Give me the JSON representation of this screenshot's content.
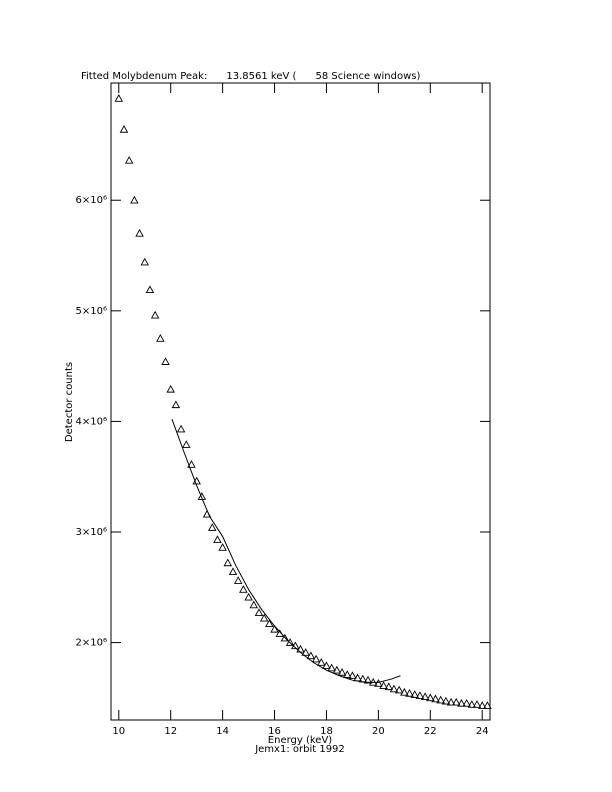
{
  "chart_data": {
    "type": "scatter",
    "title": "Fitted Molybdenum Peak:      13.8561 keV (      58 Science windows)",
    "subtitle": "Jemx1: orbit 1992",
    "x_label": "Energy (keV)",
    "y_label": "Detector counts",
    "xlim": [
      9.7,
      24.3
    ],
    "ylim": [
      1300000,
      7060000
    ],
    "xticks": [
      10,
      12,
      14,
      16,
      18,
      20,
      22,
      24
    ],
    "yticks": [
      {
        "value": 2000000,
        "label": "2×10⁶"
      },
      {
        "value": 3000000,
        "label": "3×10⁶"
      },
      {
        "value": 4000000,
        "label": "4×10⁶"
      },
      {
        "value": 5000000,
        "label": "5×10⁶"
      },
      {
        "value": 6000000,
        "label": "6×10⁶"
      }
    ],
    "series": [
      {
        "type": "scatter",
        "marker": "triangle",
        "color": "#000000",
        "x": [
          10.0,
          10.2,
          10.4,
          10.6,
          10.8,
          11.0,
          11.2,
          11.4,
          11.6,
          11.8,
          12.0,
          12.2,
          12.4,
          12.6,
          12.8,
          13.0,
          13.2,
          13.4,
          13.6,
          13.8,
          14.0,
          14.2,
          14.4,
          14.6,
          14.8,
          15.0,
          15.2,
          15.4,
          15.6,
          15.8,
          16.0,
          16.2,
          16.4,
          16.6,
          16.8,
          17.0,
          17.2,
          17.4,
          17.6,
          17.8,
          18.0,
          18.2,
          18.4,
          18.6,
          18.8,
          19.0,
          19.2,
          19.4,
          19.6,
          19.8,
          20.0,
          20.2,
          20.4,
          20.6,
          20.8,
          21.0,
          21.2,
          21.4,
          21.6,
          21.8,
          22.0,
          22.2,
          22.4,
          22.6,
          22.8,
          23.0,
          23.2,
          23.4,
          23.6,
          23.8,
          24.0,
          24.2
        ],
        "values": [
          6920000,
          6640000,
          6360000,
          6000000,
          5700000,
          5440000,
          5190000,
          4960000,
          4750000,
          4540000,
          4290000,
          4150000,
          3930000,
          3790000,
          3610000,
          3460000,
          3320000,
          3160000,
          3040000,
          2930000,
          2860000,
          2720000,
          2640000,
          2560000,
          2480000,
          2410000,
          2340000,
          2270000,
          2220000,
          2170000,
          2120000,
          2080000,
          2040000,
          2000000,
          1970000,
          1940000,
          1910000,
          1880000,
          1850000,
          1820000,
          1790000,
          1770000,
          1750000,
          1730000,
          1710000,
          1700000,
          1680000,
          1670000,
          1660000,
          1640000,
          1630000,
          1610000,
          1600000,
          1580000,
          1570000,
          1550000,
          1540000,
          1530000,
          1520000,
          1510000,
          1500000,
          1490000,
          1480000,
          1470000,
          1460000,
          1460000,
          1450000,
          1450000,
          1440000,
          1440000,
          1430000,
          1430000
        ]
      },
      {
        "type": "line",
        "color": "#000000",
        "x": [
          12.05,
          12.5,
          13.0,
          13.5,
          14.0,
          14.5,
          15.0,
          15.5,
          16.0,
          16.5,
          17.0,
          17.5,
          18.0,
          18.5,
          19.0,
          19.5,
          20.0,
          20.5,
          20.85
        ],
        "values": [
          4020000,
          3730000,
          3420000,
          3140000,
          2960000,
          2700000,
          2480000,
          2300000,
          2150000,
          2020000,
          1910000,
          1820000,
          1750000,
          1700000,
          1660000,
          1640000,
          1640000,
          1670000,
          1700000
        ]
      }
    ]
  }
}
